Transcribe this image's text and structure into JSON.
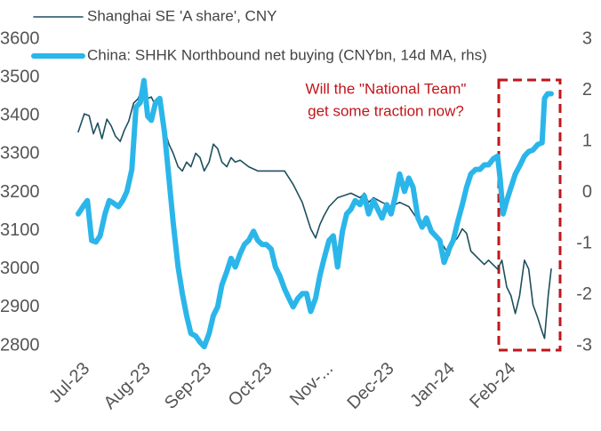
{
  "chart_data": {
    "type": "line",
    "annotation": [
      "Will the \"National Team\"",
      "get some traction now?"
    ],
    "xlim": [
      0,
      7.77
    ],
    "xticks": [
      {
        "value": 0,
        "label": "Jul-23"
      },
      {
        "value": 1,
        "label": "Aug-23"
      },
      {
        "value": 2,
        "label": "Sep-23"
      },
      {
        "value": 3,
        "label": "Oct-23"
      },
      {
        "value": 4,
        "label": "Nov-..."
      },
      {
        "value": 5,
        "label": "Dec-23"
      },
      {
        "value": 6,
        "label": "Jan-24"
      },
      {
        "value": 7,
        "label": "Feb-24"
      }
    ],
    "ylim": [
      2800,
      3600
    ],
    "yticks": [
      2800,
      2900,
      3000,
      3100,
      3200,
      3300,
      3400,
      3500,
      3600
    ],
    "y2lim": [
      -3,
      3
    ],
    "y2ticks": [
      -3,
      -2,
      -1,
      0,
      1,
      2,
      3
    ],
    "series": [
      {
        "name": "Shanghai SE 'A share', CNY",
        "color": "#1d4f5e",
        "width": 1.6,
        "x": [
          0,
          0.1,
          0.18,
          0.25,
          0.32,
          0.39,
          0.47,
          0.54,
          0.61,
          0.69,
          0.76,
          0.83,
          0.91,
          0.98,
          1.05,
          1.12,
          1.2,
          1.27,
          1.34,
          1.42,
          1.49,
          1.56,
          1.64,
          1.71,
          1.78,
          1.85,
          1.93,
          2.0,
          2.07,
          2.15,
          2.22,
          2.29,
          2.36,
          2.44,
          2.51,
          2.58,
          2.66,
          2.8,
          2.95,
          3.09,
          3.24,
          3.39,
          3.53,
          3.68,
          3.82,
          3.9,
          3.97,
          4.04,
          4.12,
          4.26,
          4.48,
          4.63,
          4.7,
          4.77,
          4.85,
          4.99,
          5.14,
          5.28,
          5.43,
          5.58,
          5.65,
          5.72,
          5.87,
          6.01,
          6.09,
          6.16,
          6.23,
          6.31,
          6.38,
          6.45,
          6.6,
          6.67,
          6.74,
          6.89,
          6.96,
          7.04,
          7.11,
          7.18,
          7.25,
          7.33,
          7.4,
          7.47,
          7.55,
          7.62,
          7.66,
          7.72,
          7.77
        ],
        "values": [
          3358,
          3405,
          3400,
          3353,
          3381,
          3340,
          3391,
          3374,
          3347,
          3333,
          3363,
          3386,
          3433,
          3444,
          3467,
          3444,
          3449,
          3426,
          3444,
          3363,
          3326,
          3302,
          3267,
          3256,
          3279,
          3267,
          3302,
          3291,
          3256,
          3279,
          3326,
          3314,
          3279,
          3267,
          3291,
          3279,
          3284,
          3267,
          3256,
          3256,
          3256,
          3256,
          3221,
          3174,
          3105,
          3081,
          3116,
          3140,
          3163,
          3186,
          3198,
          3186,
          3198,
          3174,
          3186,
          3174,
          3163,
          3174,
          3163,
          3128,
          3105,
          3116,
          3081,
          3058,
          3035,
          3070,
          3081,
          3105,
          3093,
          3047,
          3023,
          3012,
          3023,
          3000,
          3023,
          2953,
          2930,
          2884,
          2930,
          3023,
          3000,
          2907,
          2872,
          2837,
          2819,
          2930,
          3000
        ]
      },
      {
        "name": "China: SHHK Northbound net buying (CNYbn, 14d MA, rhs)",
        "color": "#2bb6ea",
        "width": 6,
        "axis": "y2",
        "x": [
          0,
          0.1,
          0.15,
          0.22,
          0.29,
          0.36,
          0.44,
          0.51,
          0.58,
          0.66,
          0.73,
          0.8,
          0.88,
          0.95,
          1.02,
          1.08,
          1.14,
          1.2,
          1.27,
          1.34,
          1.42,
          1.49,
          1.56,
          1.64,
          1.71,
          1.78,
          1.85,
          1.93,
          2.0,
          2.07,
          2.15,
          2.22,
          2.29,
          2.36,
          2.44,
          2.51,
          2.58,
          2.66,
          2.73,
          2.8,
          2.88,
          2.95,
          3.02,
          3.09,
          3.17,
          3.24,
          3.31,
          3.39,
          3.46,
          3.53,
          3.61,
          3.68,
          3.75,
          3.82,
          3.9,
          3.97,
          4.04,
          4.12,
          4.19,
          4.26,
          4.34,
          4.41,
          4.48,
          4.55,
          4.63,
          4.7,
          4.77,
          4.85,
          4.92,
          4.99,
          5.07,
          5.14,
          5.21,
          5.28,
          5.36,
          5.43,
          5.5,
          5.58,
          5.65,
          5.72,
          5.8,
          5.87,
          5.94,
          6.01,
          6.09,
          6.16,
          6.23,
          6.31,
          6.38,
          6.45,
          6.53,
          6.6,
          6.67,
          6.74,
          6.82,
          6.89,
          6.93,
          6.98,
          7.04,
          7.11,
          7.18,
          7.26,
          7.33,
          7.4,
          7.47,
          7.55,
          7.62,
          7.66,
          7.71,
          7.77
        ],
        "values": [
          -0.42,
          -0.24,
          -0.16,
          -0.94,
          -0.97,
          -0.85,
          -0.42,
          -0.16,
          -0.21,
          -0.28,
          -0.16,
          0.02,
          0.45,
          1.67,
          1.76,
          2.19,
          1.49,
          1.41,
          1.76,
          1.84,
          1.15,
          0.28,
          -0.59,
          -1.46,
          -1.98,
          -2.41,
          -2.76,
          -2.81,
          -2.93,
          -3.02,
          -2.76,
          -2.41,
          -2.24,
          -1.81,
          -1.55,
          -1.29,
          -1.46,
          -1.2,
          -1.02,
          -0.94,
          -0.76,
          -0.94,
          -1.02,
          -1.02,
          -1.11,
          -1.46,
          -1.63,
          -1.89,
          -2.07,
          -2.24,
          -2.07,
          -1.98,
          -1.98,
          -2.33,
          -2.07,
          -1.63,
          -1.29,
          -0.94,
          -0.85,
          -1.46,
          -0.76,
          -0.42,
          -0.33,
          -0.16,
          -0.24,
          -0.07,
          -0.42,
          -0.16,
          -0.33,
          -0.5,
          -0.24,
          -0.42,
          -0.07,
          0.36,
          0.02,
          0.28,
          0.1,
          -0.5,
          -0.68,
          -0.5,
          -0.76,
          -0.85,
          -0.94,
          -1.37,
          -1.11,
          -0.94,
          -0.59,
          -0.24,
          0.1,
          0.36,
          0.45,
          0.45,
          0.54,
          0.54,
          0.66,
          0.71,
          0.28,
          -0.42,
          -0.16,
          0.1,
          0.36,
          0.54,
          0.71,
          0.8,
          0.83,
          0.94,
          0.97,
          1.84,
          1.93,
          1.93
        ]
      }
    ]
  }
}
